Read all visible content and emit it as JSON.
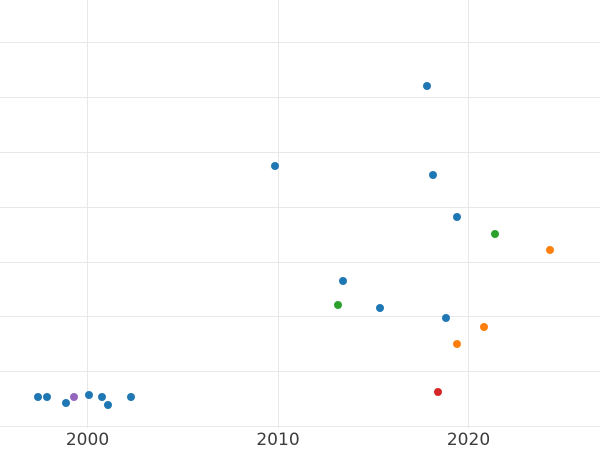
{
  "chart_data": {
    "type": "scatter",
    "title": "",
    "xlabel": "",
    "ylabel": "",
    "legend": "none",
    "grid": true,
    "background_color": "#ffffff",
    "gridline_color": "#e8e8e8",
    "tick_label_color": "#3d3d3d",
    "x_tick_labels": [
      "2000",
      "2010",
      "2020"
    ],
    "x_tick_years": [
      2000,
      2010,
      2020
    ],
    "x_range_years": [
      1997.4,
      2024.3
    ],
    "y_axis_labels_visible": false,
    "y_gridline_units": [
      0,
      1,
      2,
      3,
      4,
      5,
      6,
      7
    ],
    "ylim_units": [
      0,
      7.8
    ],
    "palette": {
      "blue": "#1f77b4",
      "orange": "#ff7f0e",
      "green": "#2ca02c",
      "red": "#d62728",
      "purple": "#9467bd"
    },
    "points": [
      {
        "x": 1997.4,
        "y": 0.54,
        "color": "blue"
      },
      {
        "x": 1997.9,
        "y": 0.55,
        "color": "blue"
      },
      {
        "x": 1998.85,
        "y": 0.43,
        "color": "blue"
      },
      {
        "x": 1999.3,
        "y": 0.54,
        "color": "purple"
      },
      {
        "x": 2000.1,
        "y": 0.58,
        "color": "blue"
      },
      {
        "x": 2000.75,
        "y": 0.54,
        "color": "blue"
      },
      {
        "x": 2001.1,
        "y": 0.4,
        "color": "blue"
      },
      {
        "x": 2002.3,
        "y": 0.55,
        "color": "blue"
      },
      {
        "x": 2009.85,
        "y": 4.75,
        "color": "blue"
      },
      {
        "x": 2013.15,
        "y": 2.22,
        "color": "green"
      },
      {
        "x": 2013.4,
        "y": 2.65,
        "color": "blue"
      },
      {
        "x": 2015.35,
        "y": 2.16,
        "color": "blue"
      },
      {
        "x": 2017.8,
        "y": 6.21,
        "color": "blue"
      },
      {
        "x": 2018.15,
        "y": 4.58,
        "color": "blue"
      },
      {
        "x": 2018.4,
        "y": 0.63,
        "color": "red"
      },
      {
        "x": 2018.8,
        "y": 1.98,
        "color": "blue"
      },
      {
        "x": 2019.4,
        "y": 3.82,
        "color": "blue"
      },
      {
        "x": 2019.4,
        "y": 1.5,
        "color": "orange"
      },
      {
        "x": 2020.8,
        "y": 1.82,
        "color": "orange"
      },
      {
        "x": 2021.4,
        "y": 3.52,
        "color": "green"
      },
      {
        "x": 2024.3,
        "y": 3.22,
        "color": "orange"
      }
    ]
  }
}
